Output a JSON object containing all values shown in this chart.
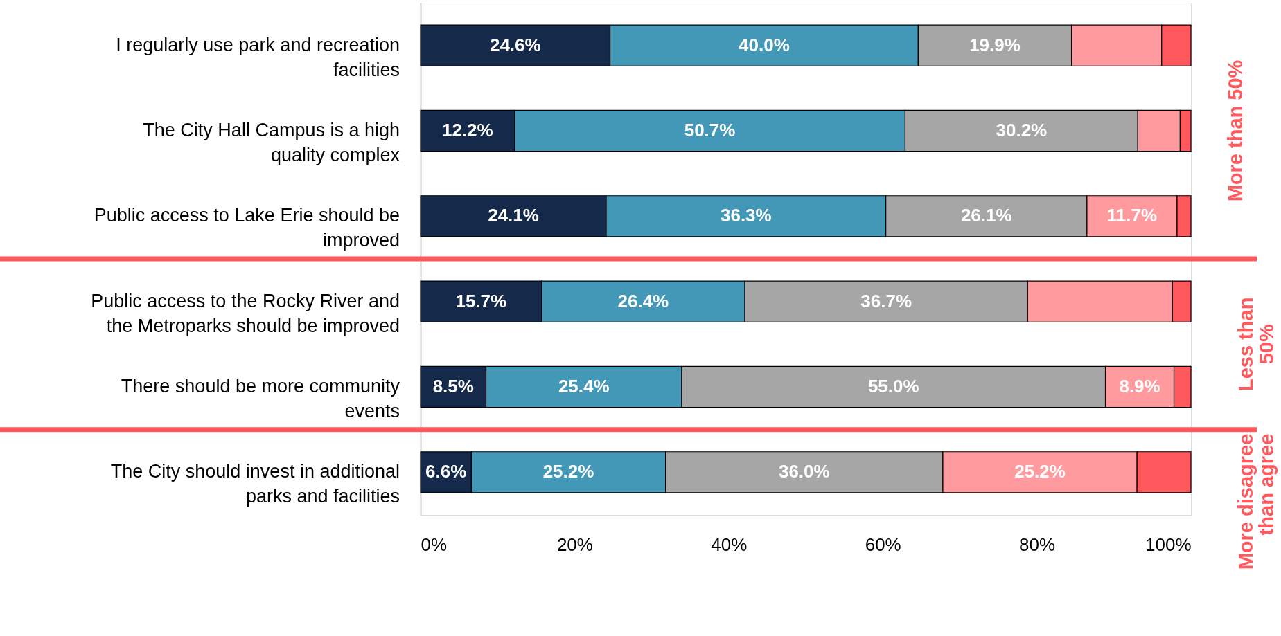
{
  "chart_data": {
    "type": "bar",
    "orientation": "horizontal",
    "stacked": true,
    "categories": [
      "I regularly use park and recreation facilities",
      "The City Hall Campus is a high quality complex",
      "Public access to Lake Erie should be improved",
      "Public access to the Rocky River and the Metroparks should be improved",
      "There should be more community events",
      "The City should invest in additional parks and facilities"
    ],
    "series": [
      {
        "color": "#15294a",
        "values": [
          24.6,
          12.2,
          24.1,
          15.7,
          8.5,
          6.6
        ],
        "value_labels": [
          "24.6%",
          "12.2%",
          "24.1%",
          "15.7%",
          "8.5%",
          "6.6%"
        ]
      },
      {
        "color": "#4398b7",
        "values": [
          40.0,
          50.7,
          36.3,
          26.4,
          25.4,
          25.2
        ],
        "value_labels": [
          "40.0%",
          "50.7%",
          "36.3%",
          "26.4%",
          "25.4%",
          "25.2%"
        ]
      },
      {
        "color": "#a6a6a6",
        "values": [
          19.9,
          30.2,
          26.1,
          36.7,
          55.0,
          36.0
        ],
        "value_labels": [
          "19.9%",
          "30.2%",
          "26.1%",
          "36.7%",
          "55.0%",
          "36.0%"
        ]
      },
      {
        "color": "#ff9b9e",
        "values": [
          11.7,
          5.5,
          11.7,
          18.8,
          8.9,
          25.2
        ],
        "value_labels": [
          null,
          null,
          "11.7%",
          null,
          "8.9%",
          "25.2%"
        ]
      },
      {
        "color": "#ff595e",
        "values": [
          3.8,
          1.4,
          1.8,
          2.4,
          2.2,
          7.0
        ],
        "value_labels": [
          null,
          null,
          null,
          null,
          null,
          null
        ]
      }
    ],
    "xlim": [
      0,
      100
    ],
    "xticks": [
      {
        "value": 0,
        "label": "0%"
      },
      {
        "value": 20,
        "label": "20%"
      },
      {
        "value": 40,
        "label": "40%"
      },
      {
        "value": 60,
        "label": "60%"
      },
      {
        "value": 80,
        "label": "80%"
      },
      {
        "value": 100,
        "label": "100%"
      }
    ],
    "ref_lines": [
      {
        "axis": "y",
        "value": "Public access to Lake Erie should be improved",
        "color": "#ff595e"
      },
      {
        "axis": "y",
        "value": "There should be more community events",
        "color": "#ff595e"
      }
    ],
    "annotations": [
      "More than 50%",
      "Less than 50%",
      "More disagree than agree"
    ]
  }
}
